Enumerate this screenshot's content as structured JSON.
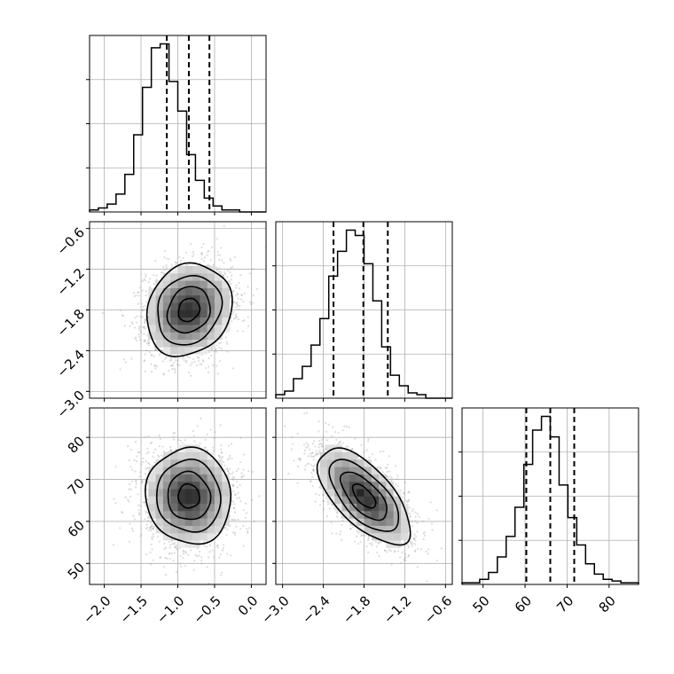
{
  "chart_data": {
    "type": "corner",
    "parameters": [
      {
        "range": [
          -2.2,
          0.2
        ],
        "ticks": [
          -2.0,
          -1.5,
          -1.0,
          -0.5,
          0.0
        ],
        "tick_labels": [
          "−2.0",
          "−1.5",
          "−1.0",
          "−0.5",
          "0.0"
        ],
        "quantiles": [
          -1.15,
          -0.85,
          -0.57
        ],
        "hist_bins": [
          -2.2,
          0.2,
          20
        ],
        "hist_counts": [
          1,
          2,
          4,
          9,
          19,
          39,
          63,
          83,
          85,
          66,
          51,
          29,
          16,
          7,
          3,
          1,
          1,
          0,
          0,
          0
        ]
      },
      {
        "range": [
          -3.1,
          -0.5
        ],
        "ticks": [
          -3.0,
          -2.4,
          -1.8,
          -1.2,
          -0.6
        ],
        "tick_labels": [
          "−3.0",
          "−2.4",
          "−1.8",
          "−1.2",
          "−0.6"
        ],
        "quantiles": [
          -2.25,
          -1.81,
          -1.45
        ],
        "hist_bins": [
          -3.1,
          -0.5,
          20
        ],
        "hist_counts": [
          2,
          4,
          11,
          18,
          30,
          45,
          69,
          83,
          95,
          92,
          76,
          55,
          29,
          13,
          7,
          3,
          2,
          0,
          0,
          0
        ]
      },
      {
        "range": [
          45,
          87
        ],
        "ticks": [
          50,
          60,
          70,
          80
        ],
        "tick_labels": [
          "50",
          "60",
          "70",
          "80"
        ],
        "quantiles": [
          60.3,
          66,
          71.7
        ],
        "hist_bins": [
          45,
          87,
          20
        ],
        "hist_counts": [
          1,
          1,
          3,
          7,
          16,
          28,
          45,
          70,
          90,
          98,
          86,
          58,
          39,
          23,
          12,
          6,
          3,
          2,
          1,
          1
        ]
      }
    ],
    "pairs": [
      {
        "x_param": 0,
        "y_param": 1,
        "mean": [
          -0.85,
          -1.8
        ],
        "sd": [
          0.29,
          0.34
        ],
        "corr": 0.15,
        "n_points": 2600
      },
      {
        "x_param": 0,
        "y_param": 2,
        "mean": [
          -0.85,
          66
        ],
        "sd": [
          0.29,
          5.7
        ],
        "corr": -0.05,
        "n_points": 2600
      },
      {
        "x_param": 1,
        "y_param": 2,
        "mean": [
          -1.8,
          66
        ],
        "sd": [
          0.34,
          5.7
        ],
        "corr": -0.65,
        "n_points": 2600
      }
    ],
    "contour_levels_sigma": [
      0.5,
      1.0,
      1.5,
      2.0
    ],
    "grid": true,
    "colors": {
      "hist": "#000000",
      "points": "#9a9a9a",
      "grid": "#b0b0b0",
      "axis": "#000000"
    }
  }
}
